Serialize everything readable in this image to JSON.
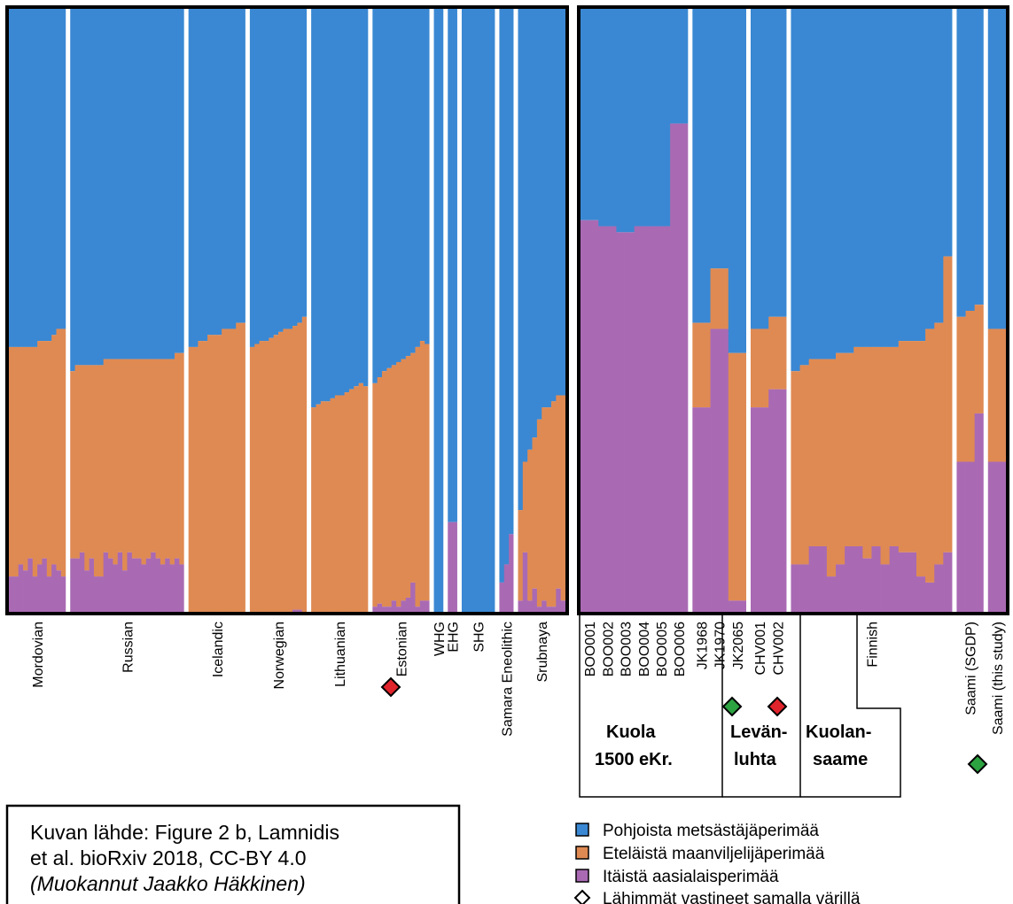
{
  "chart_data": {
    "type": "bar",
    "stacked": true,
    "normalized": true,
    "ylim": [
      0,
      1
    ],
    "component_order_bottom_to_top": [
      "purple",
      "orange",
      "blue"
    ],
    "legend": [
      {
        "key": "blue",
        "label": "Pohjoista metsästäjäperimää",
        "color": "#3a88d3"
      },
      {
        "key": "orange",
        "label": "Eteläistä maanviljelijäperimää",
        "color": "#df8a53"
      },
      {
        "key": "purple",
        "label": "Itäistä aasialaisperimää",
        "color": "#a96ab3"
      }
    ],
    "legend_marker_note": "Lähimmät vastineet samalla värillä",
    "panels": [
      {
        "groups": [
          {
            "name": "Mordovian",
            "purple": [
              0.06,
              0.06,
              0.08,
              0.07,
              0.09,
              0.06,
              0.08,
              0.09,
              0.06,
              0.08,
              0.07,
              0.06
            ],
            "orange": [
              0.38,
              0.38,
              0.36,
              0.37,
              0.35,
              0.38,
              0.37,
              0.36,
              0.39,
              0.38,
              0.4,
              0.41
            ]
          },
          {
            "name": "Russian",
            "purple": [
              0.09,
              0.09,
              0.1,
              0.07,
              0.09,
              0.06,
              0.06,
              0.1,
              0.09,
              0.08,
              0.1,
              0.07,
              0.1,
              0.09,
              0.09,
              0.08,
              0.09,
              0.1,
              0.09,
              0.08,
              0.09,
              0.08,
              0.09,
              0.08
            ],
            "orange": [
              0.31,
              0.32,
              0.31,
              0.34,
              0.32,
              0.35,
              0.35,
              0.32,
              0.33,
              0.34,
              0.32,
              0.35,
              0.32,
              0.33,
              0.33,
              0.34,
              0.33,
              0.32,
              0.33,
              0.34,
              0.33,
              0.34,
              0.34,
              0.35
            ]
          },
          {
            "name": "Icelandic",
            "purple": [
              0,
              0,
              0,
              0,
              0,
              0,
              0,
              0,
              0,
              0,
              0,
              0
            ],
            "orange": [
              0.44,
              0.44,
              0.45,
              0.45,
              0.46,
              0.46,
              0.46,
              0.47,
              0.47,
              0.47,
              0.48,
              0.48
            ]
          },
          {
            "name": "Norwegian",
            "purple": [
              0,
              0,
              0,
              0,
              0,
              0,
              0,
              0,
              0,
              0.005,
              0.005,
              0
            ],
            "orange": [
              0.44,
              0.445,
              0.45,
              0.45,
              0.455,
              0.46,
              0.465,
              0.47,
              0.47,
              0.47,
              0.475,
              0.49
            ]
          },
          {
            "name": "Lithuanian",
            "purple": [
              0,
              0,
              0,
              0,
              0,
              0,
              0,
              0,
              0,
              0,
              0,
              0
            ],
            "orange": [
              0.34,
              0.345,
              0.35,
              0.35,
              0.355,
              0.36,
              0.36,
              0.365,
              0.37,
              0.375,
              0.38,
              0.375
            ]
          },
          {
            "name": "Estonian",
            "marker": "red",
            "purple": [
              0.01,
              0.015,
              0.01,
              0.01,
              0.02,
              0.01,
              0.02,
              0.025,
              0.05,
              0.01,
              0.02,
              0.02
            ],
            "orange": [
              0.37,
              0.375,
              0.39,
              0.395,
              0.39,
              0.405,
              0.4,
              0.4,
              0.38,
              0.43,
              0.43,
              0.425
            ]
          },
          {
            "name": "WHG",
            "purple": [
              0,
              0
            ],
            "orange": [
              0,
              0
            ]
          },
          {
            "name": "EHG",
            "purple": [
              0.15,
              0.15
            ],
            "orange": [
              0,
              0
            ]
          },
          {
            "name": "SHG",
            "purple": [
              0,
              0,
              0,
              0,
              0,
              0,
              0
            ],
            "orange": [
              0,
              0,
              0,
              0,
              0,
              0,
              0
            ]
          },
          {
            "name": "Samara Eneolithic",
            "purple": [
              0.05,
              0.08,
              0.13
            ],
            "orange": [
              0,
              0,
              0
            ]
          },
          {
            "name": "Srubnaya",
            "purple": [
              0.02,
              0.1,
              0.02,
              0.04,
              0.01,
              0.02,
              0.01,
              0.01,
              0.04,
              0.02
            ],
            "orange": [
              0.15,
              0.15,
              0.25,
              0.25,
              0.31,
              0.32,
              0.33,
              0.34,
              0.32,
              0.34
            ]
          }
        ]
      },
      {
        "groups": [
          {
            "name": "BOO001",
            "purple": [
              0.65,
              0.65
            ],
            "orange": [
              0,
              0
            ]
          },
          {
            "name": "BOO002",
            "purple": [
              0.64,
              0.64
            ],
            "orange": [
              0,
              0
            ]
          },
          {
            "name": "BOO003",
            "purple": [
              0.63,
              0.63
            ],
            "orange": [
              0,
              0
            ]
          },
          {
            "name": "BOO004",
            "purple": [
              0.64,
              0.64
            ],
            "orange": [
              0,
              0
            ]
          },
          {
            "name": "BOO005",
            "purple": [
              0.64,
              0.64
            ],
            "orange": [
              0,
              0
            ]
          },
          {
            "name": "BOO006",
            "purple": [
              0.81,
              0.81
            ],
            "orange": [
              0,
              0
            ]
          },
          {
            "name": "JK1968",
            "marker": "green",
            "purple": [
              0.34,
              0.34
            ],
            "orange": [
              0.14,
              0.14
            ]
          },
          {
            "name": "JK1970",
            "purple": [
              0.47,
              0.47
            ],
            "orange": [
              0.1,
              0.1
            ]
          },
          {
            "name": "JK2065",
            "marker": "red",
            "purple": [
              0.02,
              0.02
            ],
            "orange": [
              0.41,
              0.41
            ]
          },
          {
            "name": "CHV001",
            "purple": [
              0.34,
              0.34
            ],
            "orange": [
              0.13,
              0.13
            ]
          },
          {
            "name": "CHV002",
            "purple": [
              0.37,
              0.37
            ],
            "orange": [
              0.12,
              0.12
            ]
          },
          {
            "name": "Finnish",
            "purple": [
              0.08,
              0.08,
              0.11,
              0.11,
              0.06,
              0.08,
              0.11,
              0.11,
              0.09,
              0.11,
              0.08,
              0.11,
              0.1,
              0.1,
              0.06,
              0.05,
              0.08,
              0.1
            ],
            "orange": [
              0.32,
              0.33,
              0.31,
              0.31,
              0.36,
              0.35,
              0.32,
              0.33,
              0.35,
              0.33,
              0.36,
              0.33,
              0.35,
              0.35,
              0.39,
              0.42,
              0.4,
              0.49
            ]
          },
          {
            "name": "Saami (SGDP)",
            "marker": "green",
            "purple": [
              0.25,
              0.25,
              0.33
            ],
            "orange": [
              0.24,
              0.25,
              0.18
            ]
          },
          {
            "name": "Saami (this study)",
            "purple": [
              0.25,
              0.25
            ],
            "orange": [
              0.22,
              0.22
            ]
          }
        ]
      }
    ],
    "region_labels": [
      {
        "lines": [
          "Kuola",
          "1500 eKr."
        ]
      },
      {
        "lines": [
          "Levän-",
          "luhta"
        ]
      },
      {
        "lines": [
          "Kuolan-",
          "saame"
        ]
      }
    ]
  },
  "source_box": {
    "line1": "Kuvan lähde: Figure 2 b, Lamnidis",
    "line2": "et al. bioRxiv 2018, CC-BY 4.0",
    "line3": "(Muokannut Jaakko Häkkinen)"
  },
  "colors": {
    "blue": "#3a88d3",
    "orange": "#df8a53",
    "purple": "#a96ab3",
    "red": "#e0242c",
    "green": "#2ca241"
  }
}
